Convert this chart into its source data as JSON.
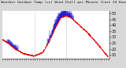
{
  "title": "Milwaukee Weather Outdoor Temp (vs) Wind Chill per Minute (Last 24 Hours)",
  "background_color": "#d8d8d8",
  "plot_bg_color": "#ffffff",
  "n_points": 1440,
  "red_line_color": "#dd0000",
  "blue_bar_color": "#0000cc",
  "grid_color": "#888888",
  "ylim": [
    12,
    52
  ],
  "yticks": [
    15,
    20,
    25,
    30,
    35,
    40,
    45,
    50
  ],
  "ylabel_fontsize": 3.5,
  "title_fontsize": 3.2,
  "vline_positions": [
    0.3,
    0.6
  ],
  "curve_points_x": [
    0.0,
    0.05,
    0.12,
    0.2,
    0.3,
    0.38,
    0.44,
    0.5,
    0.55,
    0.6,
    0.65,
    0.7,
    0.8,
    0.9,
    1.0
  ],
  "curve_points_y": [
    28,
    25,
    20,
    16,
    14,
    17,
    26,
    38,
    46,
    48,
    46,
    42,
    34,
    24,
    13
  ]
}
